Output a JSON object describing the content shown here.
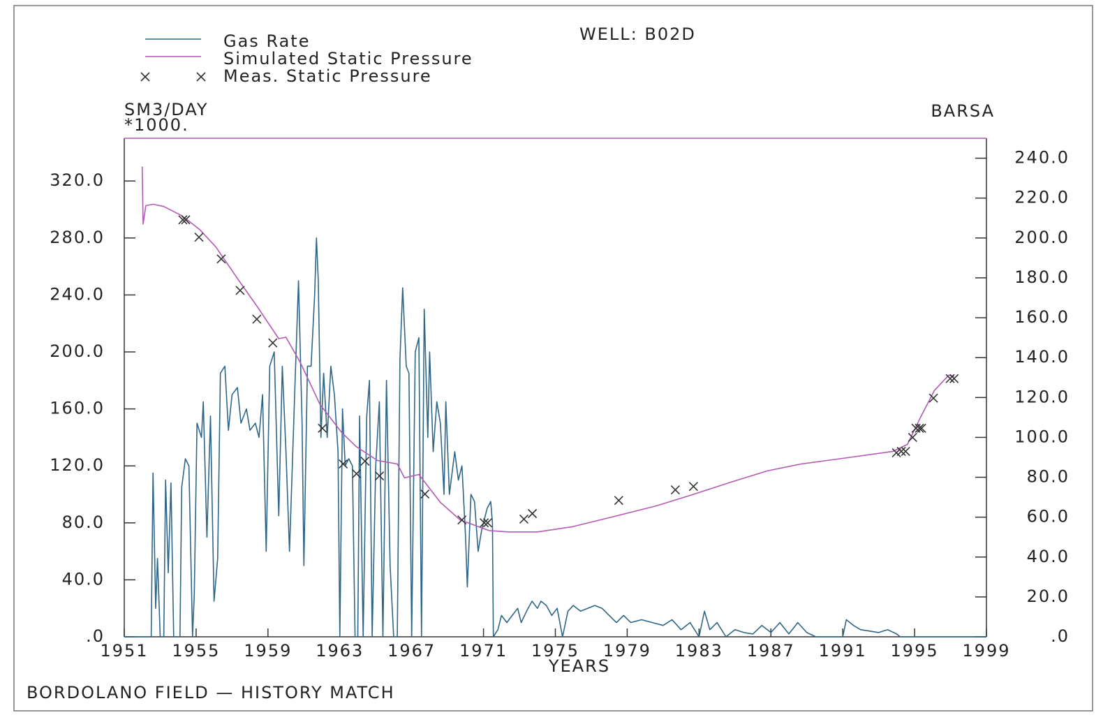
{
  "chart_data": {
    "type": "line",
    "title": "WELL: B02D",
    "caption": "BORDOLANO FIELD — HISTORY MATCH",
    "x_label": "YEARS",
    "y_label": "SM3/DAY",
    "y_unit": "*1000.",
    "y2_label": "BARSA",
    "xlim": [
      1951,
      1999
    ],
    "xticks": [
      1951,
      1955,
      1959,
      1963,
      1967,
      1971,
      1975,
      1979,
      1983,
      1987,
      1991,
      1995,
      1999
    ],
    "ylim": [
      0,
      350
    ],
    "yticks": [
      {
        "value": 0,
        "label": ".0"
      },
      {
        "value": 40,
        "label": "40.0"
      },
      {
        "value": 80,
        "label": "80.0"
      },
      {
        "value": 120,
        "label": "120.0"
      },
      {
        "value": 160,
        "label": "160.0"
      },
      {
        "value": 200,
        "label": "200.0"
      },
      {
        "value": 240,
        "label": "240.0"
      },
      {
        "value": 280,
        "label": "280.0"
      },
      {
        "value": 320,
        "label": "320.0"
      }
    ],
    "y2lim": [
      0,
      250
    ],
    "y2ticks": [
      {
        "value": 0,
        "label": ".0"
      },
      {
        "value": 20,
        "label": "20.0"
      },
      {
        "value": 40,
        "label": "40.0"
      },
      {
        "value": 60,
        "label": "60.0"
      },
      {
        "value": 80,
        "label": "80.0"
      },
      {
        "value": 100,
        "label": "100.0"
      },
      {
        "value": 120,
        "label": "120.0"
      },
      {
        "value": 140,
        "label": "140.0"
      },
      {
        "value": 160,
        "label": "160.0"
      },
      {
        "value": 180,
        "label": "180.0"
      },
      {
        "value": 200,
        "label": "200.0"
      },
      {
        "value": 220,
        "label": "220.0"
      },
      {
        "value": 240,
        "label": "240.0"
      }
    ],
    "series": [
      {
        "name": "Gas Rate",
        "color": "#2f6688",
        "axis": "y",
        "marker": "line",
        "x": [
          1951.0,
          1952.5,
          1952.6,
          1952.75,
          1952.85,
          1953.0,
          1953.2,
          1953.3,
          1953.45,
          1953.6,
          1953.75,
          1954.1,
          1954.2,
          1954.4,
          1954.6,
          1954.8,
          1954.9,
          1955.05,
          1955.3,
          1955.4,
          1955.6,
          1955.8,
          1956.0,
          1956.2,
          1956.35,
          1956.6,
          1956.8,
          1957.0,
          1957.3,
          1957.5,
          1957.8,
          1958.0,
          1958.3,
          1958.5,
          1958.7,
          1958.9,
          1959.1,
          1959.35,
          1959.6,
          1959.8,
          1960.0,
          1960.2,
          1960.5,
          1960.7,
          1960.9,
          1961.0,
          1961.2,
          1961.4,
          1961.6,
          1961.7,
          1961.8,
          1961.95,
          1962.1,
          1962.3,
          1962.5,
          1962.7,
          1962.9,
          1963.0,
          1963.15,
          1963.3,
          1963.5,
          1963.7,
          1963.85,
          1964.0,
          1964.1,
          1964.3,
          1964.5,
          1964.65,
          1964.8,
          1965.0,
          1965.2,
          1965.4,
          1965.6,
          1965.8,
          1966.0,
          1966.2,
          1966.35,
          1966.5,
          1966.7,
          1966.85,
          1967.0,
          1967.2,
          1967.4,
          1967.55,
          1967.7,
          1967.9,
          1968.0,
          1968.2,
          1968.4,
          1968.6,
          1968.8,
          1968.9,
          1969.1,
          1969.4,
          1969.6,
          1969.8,
          1970.0,
          1970.1,
          1970.3,
          1970.5,
          1970.7,
          1970.9,
          1971.2,
          1971.4,
          1971.5,
          1971.55,
          1971.8,
          1972.0,
          1972.3,
          1972.6,
          1972.9,
          1973.1,
          1973.4,
          1973.7,
          1974.0,
          1974.2,
          1974.5,
          1974.8,
          1975.1,
          1975.4,
          1975.7,
          1976.0,
          1976.4,
          1976.8,
          1977.2,
          1977.6,
          1978.0,
          1978.4,
          1978.8,
          1979.2,
          1979.8,
          1980.4,
          1981.0,
          1981.5,
          1982.0,
          1982.5,
          1983.0,
          1983.3,
          1983.6,
          1984.0,
          1984.5,
          1985.0,
          1985.5,
          1986.0,
          1986.5,
          1987.0,
          1987.5,
          1988.0,
          1988.5,
          1989.0,
          1989.5,
          1990.0,
          1990.5,
          1991.0,
          1991.2,
          1991.6,
          1992.0,
          1992.5,
          1993.0,
          1993.5,
          1994.0,
          1994.2,
          1999.0
        ],
        "values": [
          0,
          0,
          115,
          20,
          55,
          0,
          0,
          110,
          45,
          108,
          0,
          0,
          105,
          125,
          120,
          0,
          30,
          150,
          140,
          165,
          70,
          155,
          25,
          55,
          185,
          190,
          145,
          170,
          175,
          150,
          160,
          145,
          150,
          140,
          170,
          60,
          190,
          200,
          85,
          190,
          130,
          60,
          175,
          250,
          150,
          50,
          190,
          190,
          240,
          280,
          250,
          140,
          185,
          140,
          190,
          170,
          130,
          0,
          160,
          120,
          125,
          120,
          0,
          0,
          155,
          0,
          155,
          180,
          0,
          120,
          165,
          0,
          180,
          50,
          0,
          0,
          195,
          245,
          190,
          185,
          0,
          200,
          210,
          0,
          230,
          140,
          200,
          130,
          165,
          150,
          100,
          165,
          100,
          130,
          110,
          120,
          70,
          35,
          100,
          95,
          60,
          75,
          90,
          95,
          80,
          0,
          5,
          15,
          10,
          15,
          20,
          10,
          18,
          25,
          20,
          25,
          22,
          15,
          20,
          0,
          18,
          22,
          18,
          20,
          22,
          20,
          15,
          10,
          15,
          10,
          12,
          10,
          8,
          12,
          5,
          10,
          0,
          18,
          5,
          10,
          0,
          5,
          3,
          2,
          8,
          3,
          10,
          2,
          10,
          3,
          0,
          0,
          0,
          0,
          12,
          8,
          5,
          4,
          3,
          5,
          2,
          0,
          0
        ]
      },
      {
        "name": "Simulated Static Pressure",
        "color": "#b25ab4",
        "axis": "y2",
        "marker": "line",
        "x": [
          1952.0,
          1952.05,
          1952.2,
          1952.6,
          1953.2,
          1954.2,
          1955.2,
          1956.1,
          1957.3,
          1958.4,
          1959.6,
          1960.0,
          1960.8,
          1961.9,
          1963.1,
          1963.9,
          1965.1,
          1966.2,
          1966.6,
          1967.4,
          1968.6,
          1969.7,
          1971.3,
          1972.4,
          1974.0,
          1975.9,
          1978.3,
          1980.6,
          1982.5,
          1984.9,
          1986.8,
          1988.7,
          1990.7,
          1993.8,
          1994.6,
          1995.3,
          1996.1,
          1996.9,
          1997.2
        ],
        "values": [
          235.8,
          207.0,
          216.2,
          216.9,
          215.8,
          211.2,
          204.2,
          195.5,
          179.7,
          165.6,
          149.5,
          150.2,
          137.6,
          116.5,
          102.5,
          95.5,
          88.4,
          86.7,
          79.7,
          81.4,
          67.4,
          58.6,
          53.3,
          52.6,
          52.6,
          55.1,
          60.4,
          65.6,
          70.9,
          77.9,
          83.2,
          86.7,
          89.1,
          93.0,
          96.5,
          109.5,
          123.5,
          131.2,
          130.5
        ]
      },
      {
        "name": "Meas. Static Pressure",
        "color": "#333333",
        "axis": "y2",
        "marker": "x",
        "x": [
          1954.26,
          1954.42,
          1955.16,
          1956.4,
          1957.45,
          1958.38,
          1959.27,
          1962.03,
          1963.19,
          1963.93,
          1964.4,
          1965.21,
          1967.74,
          1969.8,
          1971.04,
          1971.23,
          1973.25,
          1973.72,
          1978.53,
          1981.68,
          1982.69,
          1993.99,
          1994.26,
          1994.5,
          1994.89,
          1995.08,
          1995.27,
          1995.39,
          1996.05,
          1996.98,
          1997.2
        ],
        "values": [
          209.1,
          209.1,
          200.4,
          189.5,
          173.7,
          159.3,
          147.4,
          104.6,
          86.7,
          81.8,
          88.1,
          80.7,
          71.6,
          58.6,
          57.2,
          57.2,
          59.0,
          61.8,
          68.4,
          73.7,
          75.4,
          92.3,
          93.0,
          93.0,
          100.0,
          104.6,
          104.6,
          104.6,
          119.7,
          129.5,
          129.5
        ]
      }
    ]
  }
}
